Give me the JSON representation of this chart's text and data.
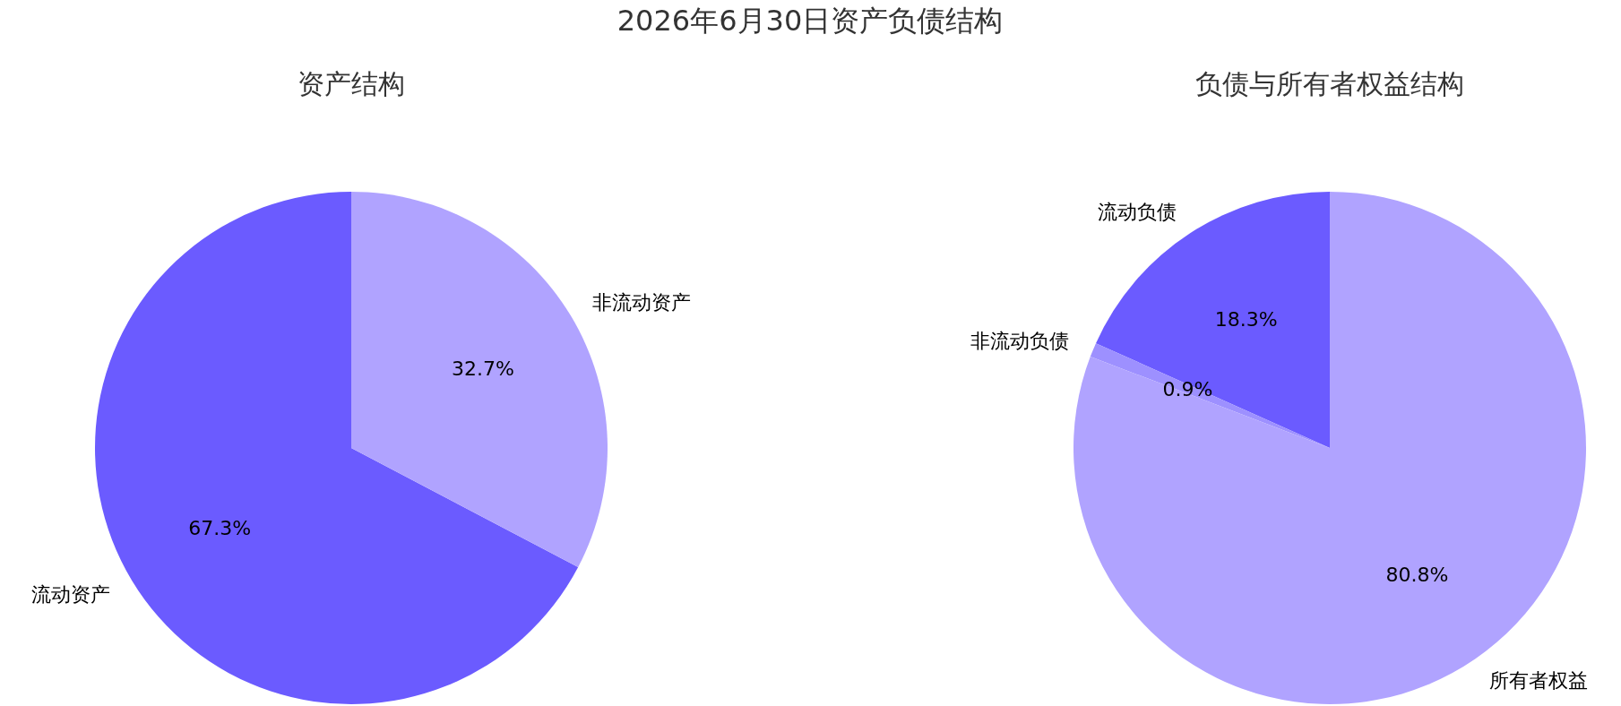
{
  "chart_data": [
    {
      "type": "pie",
      "title": "资产结构",
      "annotations": [
        "2026年6月30日资产负债结构"
      ],
      "categories": [
        "流动资产",
        "非流动资产"
      ],
      "values": [
        67.3,
        32.7
      ],
      "colors": [
        "#6b5bff",
        "#b0a3ff"
      ],
      "value_labels": [
        "67.3%",
        "32.7%"
      ]
    },
    {
      "type": "pie",
      "title": "负债与所有者权益结构",
      "categories": [
        "流动负债",
        "非流动负债",
        "所有者权益"
      ],
      "values": [
        18.3,
        0.9,
        80.8
      ],
      "colors": [
        "#6b5bff",
        "#9d90ff",
        "#b0a3ff"
      ],
      "value_labels": [
        "18.3%",
        "0.9%",
        "80.8%"
      ]
    }
  ]
}
